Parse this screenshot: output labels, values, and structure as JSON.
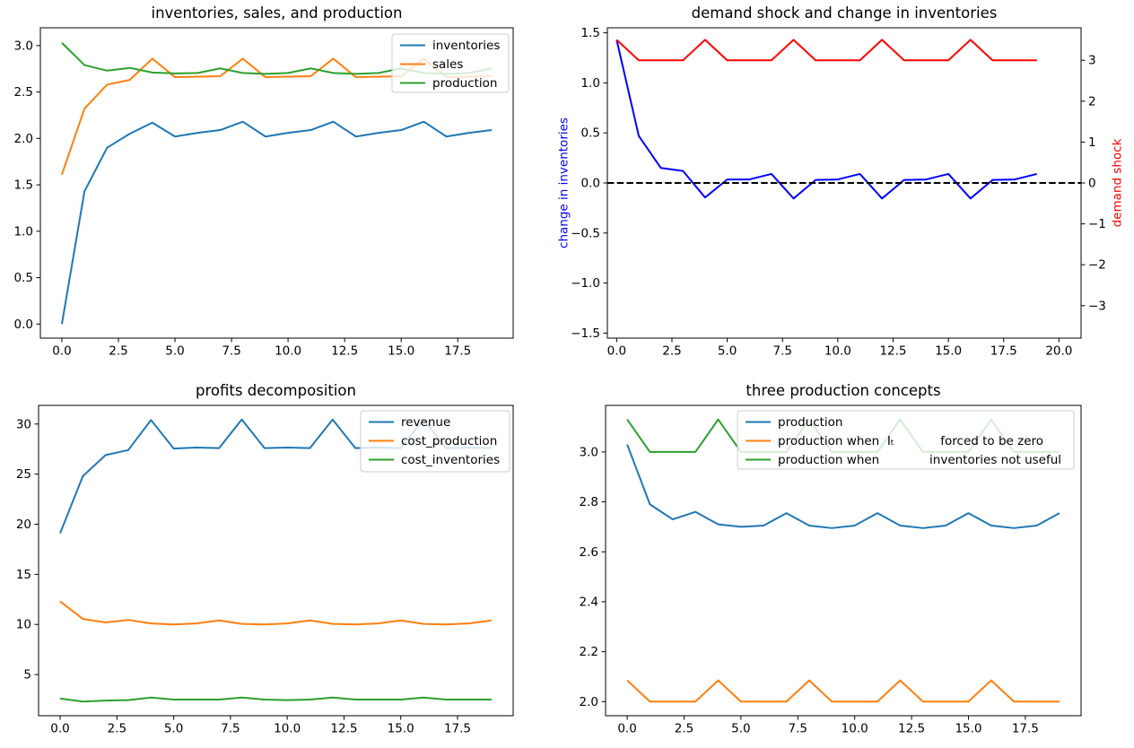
{
  "figure": {
    "background": "#ffffff",
    "text_color": "#000000"
  },
  "chart_data": [
    {
      "type": "line",
      "title": "inventories, sales, and production",
      "x": [
        0,
        1,
        2,
        3,
        4,
        5,
        6,
        7,
        8,
        9,
        10,
        11,
        12,
        13,
        14,
        15,
        16,
        17,
        18,
        19
      ],
      "series": [
        {
          "name": "inventories",
          "color": "#1f77b4",
          "axis": "left",
          "values": [
            0.0,
            1.43,
            1.9,
            2.05,
            2.17,
            2.02,
            2.06,
            2.09,
            2.18,
            2.02,
            2.06,
            2.09,
            2.18,
            2.02,
            2.06,
            2.09,
            2.18,
            2.02,
            2.06,
            2.09
          ]
        },
        {
          "name": "sales",
          "color": "#ff7f0e",
          "axis": "left",
          "values": [
            1.61,
            2.32,
            2.58,
            2.63,
            2.86,
            2.66,
            2.665,
            2.67,
            2.86,
            2.66,
            2.665,
            2.67,
            2.86,
            2.66,
            2.665,
            2.67,
            2.86,
            2.66,
            2.665,
            2.67
          ]
        },
        {
          "name": "production",
          "color": "#2ca02c",
          "axis": "left",
          "values": [
            3.03,
            2.79,
            2.73,
            2.76,
            2.71,
            2.7,
            2.705,
            2.755,
            2.705,
            2.695,
            2.705,
            2.755,
            2.705,
            2.695,
            2.705,
            2.755,
            2.705,
            2.695,
            2.705,
            2.755
          ]
        }
      ],
      "xlim": [
        -0.95,
        19.95
      ],
      "ylim": [
        -0.152,
        3.192
      ],
      "xticks": {
        "values": [
          0,
          2.5,
          5,
          7.5,
          10,
          12.5,
          15,
          17.5
        ],
        "labels": [
          "0.0",
          "2.5",
          "5.0",
          "7.5",
          "10.0",
          "12.5",
          "15.0",
          "17.5"
        ]
      },
      "yticks": {
        "values": [
          0,
          0.5,
          1,
          1.5,
          2,
          2.5,
          3
        ],
        "labels": [
          "0.0",
          "0.5",
          "1.0",
          "1.5",
          "2.0",
          "2.5",
          "3.0"
        ]
      },
      "legend": {
        "visible": true,
        "loc": "upper right"
      }
    },
    {
      "type": "line",
      "title": "demand shock and change in inventories",
      "x": [
        0,
        1,
        2,
        3,
        4,
        5,
        6,
        7,
        8,
        9,
        10,
        11,
        12,
        13,
        14,
        15,
        16,
        17,
        18,
        19
      ],
      "series": [
        {
          "name": "change in inventories",
          "color": "#0000ff",
          "axis": "left",
          "values": [
            1.43,
            0.47,
            0.15,
            0.12,
            -0.145,
            0.035,
            0.035,
            0.09,
            -0.155,
            0.03,
            0.035,
            0.09,
            -0.155,
            0.03,
            0.035,
            0.09,
            -0.155,
            0.03,
            0.035,
            0.09
          ]
        },
        {
          "name": "demand shock",
          "color": "#ff0000",
          "axis": "right",
          "values": [
            3.5,
            3,
            3,
            3,
            3.5,
            3,
            3,
            3,
            3.5,
            3,
            3,
            3,
            3.5,
            3,
            3,
            3,
            3.5,
            3,
            3,
            3
          ]
        }
      ],
      "xlim": [
        -0.42,
        21.0
      ],
      "ylim": [
        -1.55,
        1.55
      ],
      "y2lim": [
        -3.794,
        3.794
      ],
      "xticks": {
        "values": [
          0,
          2.5,
          5,
          7.5,
          10,
          12.5,
          15,
          17.5,
          20
        ],
        "labels": [
          "0.0",
          "2.5",
          "5.0",
          "7.5",
          "10.0",
          "12.5",
          "15.0",
          "17.5",
          "20.0"
        ]
      },
      "yticks": {
        "values": [
          -1.5,
          -1.0,
          -0.5,
          0,
          0.5,
          1.0,
          1.5
        ],
        "labels": [
          "−1.5",
          "−1.0",
          "−0.5",
          "0.0",
          "0.5",
          "1.0",
          "1.5"
        ]
      },
      "y2ticks": {
        "values": [
          3,
          2,
          1,
          0,
          -1,
          -2,
          -3
        ],
        "labels": [
          "3",
          "2",
          "1",
          "0",
          "−1",
          "−2",
          "−3"
        ]
      },
      "ylabel_left": {
        "text": "change in inventories",
        "color": "#0000ff"
      },
      "ylabel_right": {
        "text": "demand shock",
        "color": "#ff0000"
      },
      "hline": {
        "y": 0,
        "color": "#000000",
        "style": "dashed"
      },
      "legend": {
        "visible": false
      }
    },
    {
      "type": "line",
      "title": "profits decomposition",
      "x": [
        0,
        1,
        2,
        3,
        4,
        5,
        6,
        7,
        8,
        9,
        10,
        11,
        12,
        13,
        14,
        15,
        16,
        17,
        18,
        19
      ],
      "series": [
        {
          "name": "revenue",
          "color": "#1f77b4",
          "axis": "left",
          "values": [
            19.1,
            24.8,
            26.9,
            27.4,
            30.4,
            27.55,
            27.65,
            27.6,
            30.45,
            27.6,
            27.65,
            27.6,
            30.45,
            27.6,
            27.65,
            27.6,
            30.45,
            27.6,
            27.65,
            27.6
          ]
        },
        {
          "name": "cost_production",
          "color": "#ff7f0e",
          "axis": "left",
          "values": [
            12.3,
            10.55,
            10.2,
            10.45,
            10.1,
            10.0,
            10.1,
            10.4,
            10.05,
            10.0,
            10.1,
            10.4,
            10.05,
            10.0,
            10.1,
            10.4,
            10.05,
            10.0,
            10.1,
            10.4
          ]
        },
        {
          "name": "cost_inventories",
          "color": "#2ca02c",
          "axis": "left",
          "values": [
            2.6,
            2.3,
            2.4,
            2.45,
            2.7,
            2.5,
            2.5,
            2.5,
            2.7,
            2.5,
            2.45,
            2.5,
            2.7,
            2.5,
            2.5,
            2.5,
            2.7,
            2.5,
            2.5,
            2.5
          ]
        }
      ],
      "xlim": [
        -0.95,
        19.95
      ],
      "ylim": [
        0.89,
        31.86
      ],
      "xticks": {
        "values": [
          0,
          2.5,
          5,
          7.5,
          10,
          12.5,
          15,
          17.5
        ],
        "labels": [
          "0.0",
          "2.5",
          "5.0",
          "7.5",
          "10.0",
          "12.5",
          "15.0",
          "17.5"
        ]
      },
      "yticks": {
        "values": [
          5,
          10,
          15,
          20,
          25,
          30
        ],
        "labels": [
          "5",
          "10",
          "15",
          "20",
          "25",
          "30"
        ]
      },
      "legend": {
        "visible": true,
        "loc": "upper right"
      }
    },
    {
      "type": "line",
      "title": "three production concepts",
      "x": [
        0,
        1,
        2,
        3,
        4,
        5,
        6,
        7,
        8,
        9,
        10,
        11,
        12,
        13,
        14,
        15,
        16,
        17,
        18,
        19
      ],
      "series": [
        {
          "name": "production",
          "color": "#1f77b4",
          "axis": "left",
          "values": [
            3.03,
            2.79,
            2.73,
            2.76,
            2.71,
            2.7,
            2.705,
            2.755,
            2.705,
            2.695,
            2.705,
            2.755,
            2.705,
            2.695,
            2.705,
            2.755,
            2.705,
            2.695,
            2.705,
            2.755
          ]
        },
        {
          "name": "production when  Iₜ            forced to be zero",
          "color": "#ff7f0e",
          "axis": "left",
          "values": [
            2.085,
            2.0,
            2.0,
            2.0,
            2.085,
            2.0,
            2.0,
            2.0,
            2.085,
            2.0,
            2.0,
            2.0,
            2.085,
            2.0,
            2.0,
            2.0,
            2.085,
            2.0,
            2.0,
            2.0
          ]
        },
        {
          "name": "production when             inventories not useful",
          "color": "#2ca02c",
          "axis": "left",
          "values": [
            3.13,
            3.0,
            3.0,
            3.0,
            3.13,
            3.0,
            3.0,
            3.0,
            3.13,
            3.0,
            3.0,
            3.0,
            3.13,
            3.0,
            3.0,
            3.0,
            3.13,
            3.0,
            3.0,
            3.0
          ]
        }
      ],
      "xlim": [
        -0.95,
        19.95
      ],
      "ylim": [
        1.9435,
        3.1865
      ],
      "xticks": {
        "values": [
          0,
          2.5,
          5,
          7.5,
          10,
          12.5,
          15,
          17.5
        ],
        "labels": [
          "0.0",
          "2.5",
          "5.0",
          "7.5",
          "10.0",
          "12.5",
          "15.0",
          "17.5"
        ]
      },
      "yticks": {
        "values": [
          2.0,
          2.2,
          2.4,
          2.6,
          2.8,
          3.0
        ],
        "labels": [
          "2.0",
          "2.2",
          "2.4",
          "2.6",
          "2.8",
          "3.0"
        ]
      },
      "legend": {
        "visible": true,
        "loc": "upper center-right"
      }
    }
  ]
}
